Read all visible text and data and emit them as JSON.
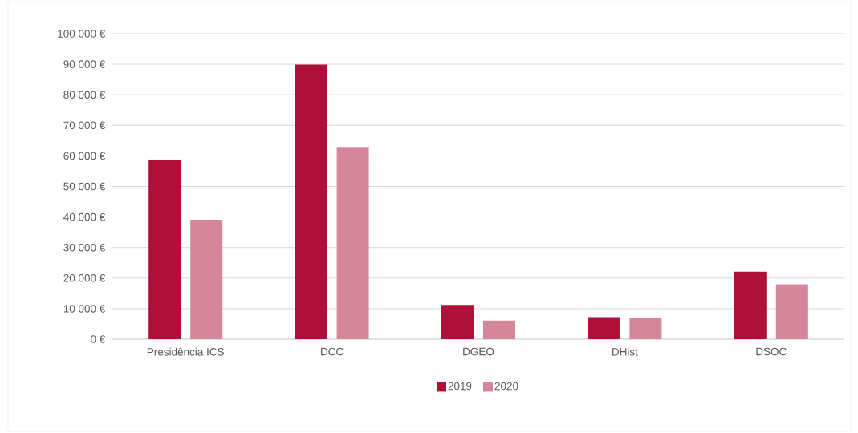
{
  "chart_data": {
    "type": "bar",
    "categories": [
      "Presidência ICS",
      "DCC",
      "DGEO",
      "DHist",
      "DSOC"
    ],
    "series": [
      {
        "name": "2019",
        "color": "#ad1139",
        "values": [
          58500,
          89900,
          11200,
          7200,
          22100
        ]
      },
      {
        "name": "2020",
        "color": "#d6869b",
        "values": [
          39100,
          62900,
          6100,
          6900,
          18000
        ]
      }
    ],
    "ylim": [
      0,
      100000
    ],
    "yticks": [
      {
        "value": 0,
        "label": "0 €"
      },
      {
        "value": 10000,
        "label": "10 000 €"
      },
      {
        "value": 20000,
        "label": "20 000 €"
      },
      {
        "value": 30000,
        "label": "30 000 €"
      },
      {
        "value": 40000,
        "label": "40 000 €"
      },
      {
        "value": 50000,
        "label": "50 000 €"
      },
      {
        "value": 60000,
        "label": "60 000 €"
      },
      {
        "value": 70000,
        "label": "70 000 €"
      },
      {
        "value": 80000,
        "label": "80 000 €"
      },
      {
        "value": 90000,
        "label": "90 000 €"
      },
      {
        "value": 100000,
        "label": "100 000 €"
      }
    ],
    "grid": "y",
    "legend": "bottom"
  }
}
